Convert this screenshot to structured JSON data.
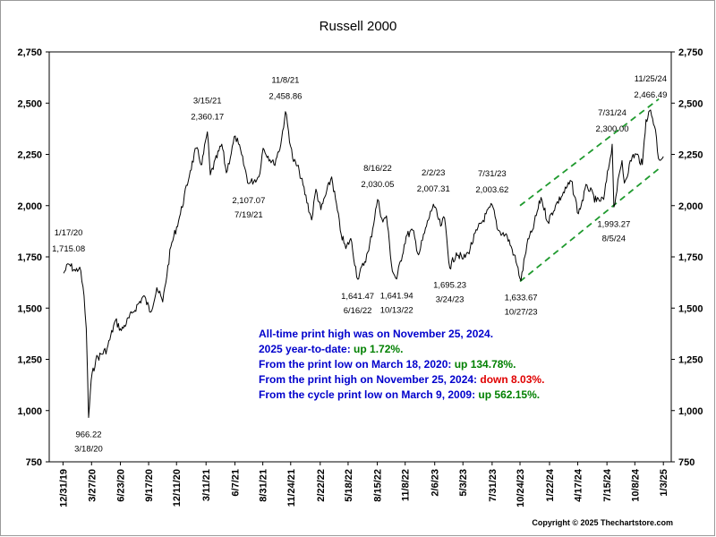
{
  "chart_data": {
    "type": "line",
    "title": "Russell 2000",
    "ylim": [
      750,
      2750
    ],
    "yticks": [
      750,
      1000,
      1250,
      1500,
      1750,
      2000,
      2250,
      2500,
      2750
    ],
    "ytick_labels": [
      "750",
      "1,000",
      "1,250",
      "1,500",
      "1,750",
      "2,000",
      "2,250",
      "2,500",
      "2,750"
    ],
    "xlim": [
      "2019-11-19",
      "2025-01-27"
    ],
    "xticks": [
      "2019-12-31",
      "2020-03-27",
      "2020-06-23",
      "2020-09-17",
      "2020-12-11",
      "2021-03-11",
      "2021-06-07",
      "2021-08-31",
      "2021-11-24",
      "2022-02-22",
      "2022-05-18",
      "2022-08-15",
      "2022-11-08",
      "2023-02-06",
      "2023-05-03",
      "2023-07-31",
      "2023-10-24",
      "2024-01-22",
      "2024-04-17",
      "2024-07-15",
      "2024-10-08",
      "2025-01-03"
    ],
    "xtick_labels": [
      "12/31/19",
      "3/27/20",
      "6/23/20",
      "9/17/20",
      "12/11/20",
      "3/11/21",
      "6/7/21",
      "8/31/21",
      "11/24/21",
      "2/22/22",
      "5/18/22",
      "8/15/22",
      "11/8/22",
      "2/6/23",
      "5/3/23",
      "7/31/23",
      "10/24/23",
      "1/22/24",
      "4/17/24",
      "7/15/24",
      "10/8/24",
      "1/3/25"
    ],
    "grid": false,
    "series": [
      {
        "color": "#000000",
        "x": [
          "2020-01-02",
          "2020-01-17",
          "2020-02-07",
          "2020-02-20",
          "2020-03-04",
          "2020-03-11",
          "2020-03-18",
          "2020-03-26",
          "2020-04-09",
          "2020-05-13",
          "2020-06-08",
          "2020-06-26",
          "2020-07-31",
          "2020-09-02",
          "2020-09-23",
          "2020-10-12",
          "2020-10-30",
          "2020-11-24",
          "2020-12-23",
          "2021-01-22",
          "2021-02-09",
          "2021-02-26",
          "2021-03-15",
          "2021-03-24",
          "2021-04-28",
          "2021-05-12",
          "2021-06-08",
          "2021-06-18",
          "2021-07-19",
          "2021-08-19",
          "2021-09-01",
          "2021-10-04",
          "2021-10-25",
          "2021-11-08",
          "2021-11-30",
          "2021-12-20",
          "2022-01-27",
          "2022-02-09",
          "2022-02-24",
          "2022-03-29",
          "2022-04-27",
          "2022-05-11",
          "2022-05-26",
          "2022-06-16",
          "2022-07-20",
          "2022-08-16",
          "2022-09-01",
          "2022-09-12",
          "2022-09-30",
          "2022-10-13",
          "2022-11-11",
          "2022-12-01",
          "2022-12-19",
          "2023-01-12",
          "2023-02-02",
          "2023-02-24",
          "2023-03-08",
          "2023-03-24",
          "2023-04-13",
          "2023-05-04",
          "2023-05-19",
          "2023-06-15",
          "2023-07-31",
          "2023-08-18",
          "2023-09-15",
          "2023-10-06",
          "2023-10-27",
          "2023-11-14",
          "2023-12-01",
          "2023-12-27",
          "2024-01-17",
          "2024-02-09",
          "2024-03-28",
          "2024-04-19",
          "2024-05-15",
          "2024-06-13",
          "2024-07-05",
          "2024-07-31",
          "2024-08-05",
          "2024-08-30",
          "2024-09-06",
          "2024-09-30",
          "2024-10-14",
          "2024-10-31",
          "2024-11-11",
          "2024-11-25",
          "2024-12-10",
          "2024-12-19",
          "2025-01-03"
        ],
        "y": [
          1670,
          1715.08,
          1680,
          1700,
          1560,
          1400,
          966.22,
          1150,
          1250,
          1300,
          1440,
          1390,
          1480,
          1560,
          1480,
          1600,
          1530,
          1800,
          1960,
          2170,
          2280,
          2200,
          2360.17,
          2150,
          2300,
          2160,
          2340,
          2300,
          2107.07,
          2140,
          2280,
          2200,
          2300,
          2458.86,
          2230,
          2170,
          1930,
          2080,
          1980,
          2140,
          1860,
          1790,
          1840,
          1641.47,
          1780,
          2030.05,
          1920,
          1950,
          1680,
          1641.94,
          1850,
          1880,
          1760,
          1900,
          2007.31,
          1900,
          1940,
          1695.23,
          1770,
          1740,
          1770,
          1880,
          2003.62,
          1880,
          1850,
          1760,
          1633.67,
          1810,
          1880,
          2040,
          1920,
          2000,
          2120,
          1960,
          2100,
          2020,
          2030,
          2300.0,
          1993.27,
          2220,
          2110,
          2240,
          2250,
          2200,
          2420,
          2466.49,
          2370,
          2230,
          2240
        ]
      }
    ],
    "channel": [
      {
        "x": [
          "2023-10-24",
          "2024-12-20"
        ],
        "y": [
          2000,
          2520
        ]
      },
      {
        "x": [
          "2023-10-24",
          "2024-12-20"
        ],
        "y": [
          1630,
          2180
        ]
      }
    ],
    "annotations": [
      {
        "date_label": "1/17/20",
        "value_label": "1,715.08",
        "x": "2020-01-17",
        "y": 1715.08,
        "placement": "above"
      },
      {
        "date_label": "3/18/20",
        "value_label": "966.22",
        "x": "2020-03-18",
        "y": 966.22,
        "placement": "below"
      },
      {
        "date_label": "3/15/21",
        "value_label": "2,360.17",
        "x": "2021-03-15",
        "y": 2360.17,
        "placement": "above"
      },
      {
        "date_label": "11/8/21",
        "value_label": "2,458.86",
        "x": "2021-11-08",
        "y": 2458.86,
        "placement": "above"
      },
      {
        "date_label": "7/19/21",
        "value_label": "2,107.07",
        "x": "2021-07-19",
        "y": 2107.07,
        "placement": "below"
      },
      {
        "date_label": "8/16/22",
        "value_label": "2,030.05",
        "x": "2022-08-16",
        "y": 2030.05,
        "placement": "above"
      },
      {
        "date_label": "6/16/22",
        "value_label": "1,641.47",
        "x": "2022-06-16",
        "y": 1641.47,
        "placement": "below"
      },
      {
        "date_label": "10/13/22",
        "value_label": "1,641.94",
        "x": "2022-10-13",
        "y": 1641.94,
        "placement": "below"
      },
      {
        "date_label": "2/2/23",
        "value_label": "2,007.31",
        "x": "2023-02-02",
        "y": 2007.31,
        "placement": "above"
      },
      {
        "date_label": "3/24/23",
        "value_label": "1,695.23",
        "x": "2023-03-24",
        "y": 1695.23,
        "placement": "below"
      },
      {
        "date_label": "7/31/23",
        "value_label": "2,003.62",
        "x": "2023-07-31",
        "y": 2003.62,
        "placement": "above"
      },
      {
        "date_label": "10/27/23",
        "value_label": "1,633.67",
        "x": "2023-10-27",
        "y": 1633.67,
        "placement": "below"
      },
      {
        "date_label": "7/31/24",
        "value_label": "2,300.00",
        "x": "2024-07-31",
        "y": 2300.0,
        "placement": "above"
      },
      {
        "date_label": "8/5/24",
        "value_label": "1,993.27",
        "x": "2024-08-05",
        "y": 1993.27,
        "placement": "below"
      },
      {
        "date_label": "11/25/24",
        "value_label": "2,466.49",
        "x": "2024-11-25",
        "y": 2466.49,
        "placement": "above"
      }
    ]
  },
  "info_lines": [
    [
      {
        "text": "All-time print high was on November 25, 2024.",
        "color": "#0000cc"
      }
    ],
    [
      {
        "text": "2025 year-to-date: ",
        "color": "#0000cc"
      },
      {
        "text": "up 1.72%.",
        "color": "#008000"
      }
    ],
    [
      {
        "text": "From the print low on March 18, 2020:  ",
        "color": "#0000cc"
      },
      {
        "text": "up 134.78%.",
        "color": "#008000"
      }
    ],
    [
      {
        "text": "From the print high on November 25, 2024:  ",
        "color": "#0000cc"
      },
      {
        "text": "down 8.03%.",
        "color": "#e00000"
      }
    ],
    [
      {
        "text": "From the cycle print low on March 9, 2009:  ",
        "color": "#0000cc"
      },
      {
        "text": "up 562.15%.",
        "color": "#008000"
      }
    ]
  ],
  "copyright": "Copyright © 2025 Thechartstore.com"
}
